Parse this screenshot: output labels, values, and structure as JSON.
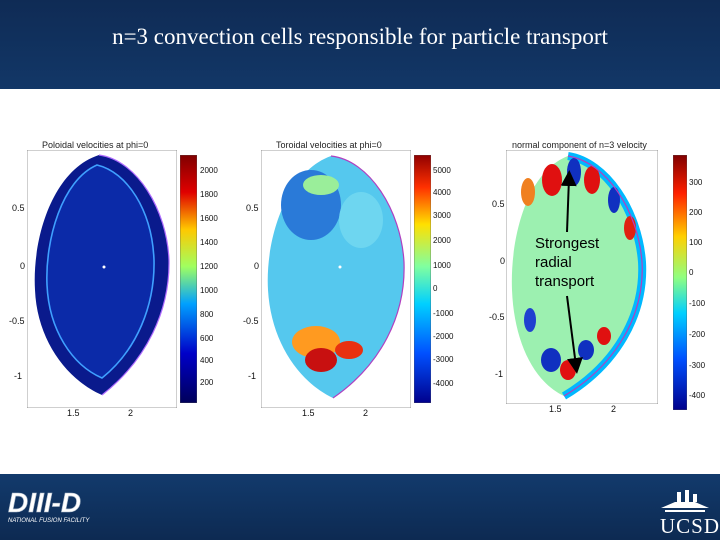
{
  "slide": {
    "title": "n=3 convection cells responsible for particle transport",
    "annotation": [
      "Strongest",
      "radial",
      "transport"
    ]
  },
  "plots": [
    {
      "title": "Poloidal velocities at phi=0",
      "yticks": [
        "0.5",
        "0",
        "-0.5",
        "-1"
      ],
      "xticks": [
        "1.5",
        "2"
      ],
      "colorbar": [
        "2000",
        "1800",
        "1600",
        "1400",
        "1200",
        "1000",
        "800",
        "600",
        "400",
        "200"
      ],
      "colors": [
        "#00005a",
        "#0000c8",
        "#00a0ff",
        "#a0ff60",
        "#ffc800",
        "#e00000",
        "#800000"
      ]
    },
    {
      "title": "Toroidal velocities at phi=0",
      "yticks": [
        "0.5",
        "0",
        "-0.5",
        "-1"
      ],
      "xticks": [
        "1.5",
        "2"
      ],
      "colorbar": [
        "5000",
        "4000",
        "3000",
        "2000",
        "1000",
        "0",
        "-1000",
        "-2000",
        "-3000",
        "-4000"
      ],
      "colors": [
        "#00008c",
        "#0050ff",
        "#00d0ff",
        "#80ffa0",
        "#ffe000",
        "#ff3000",
        "#900000"
      ]
    },
    {
      "title": "normal component of n=3 velocity",
      "yticks": [
        "0.5",
        "0",
        "-0.5",
        "-1"
      ],
      "xticks": [
        "1.5",
        "2"
      ],
      "colorbar": [
        "300",
        "200",
        "100",
        "0",
        "-100",
        "-200",
        "-300",
        "-400"
      ],
      "colors": [
        "#800000",
        "#ff2000",
        "#ffd000",
        "#90ff80",
        "#00d0ff",
        "#0050ff",
        "#00008c"
      ]
    }
  ],
  "logos": {
    "left": "DIII-D",
    "left_sub": "NATIONAL FUSION FACILITY",
    "right": "UCSD"
  }
}
